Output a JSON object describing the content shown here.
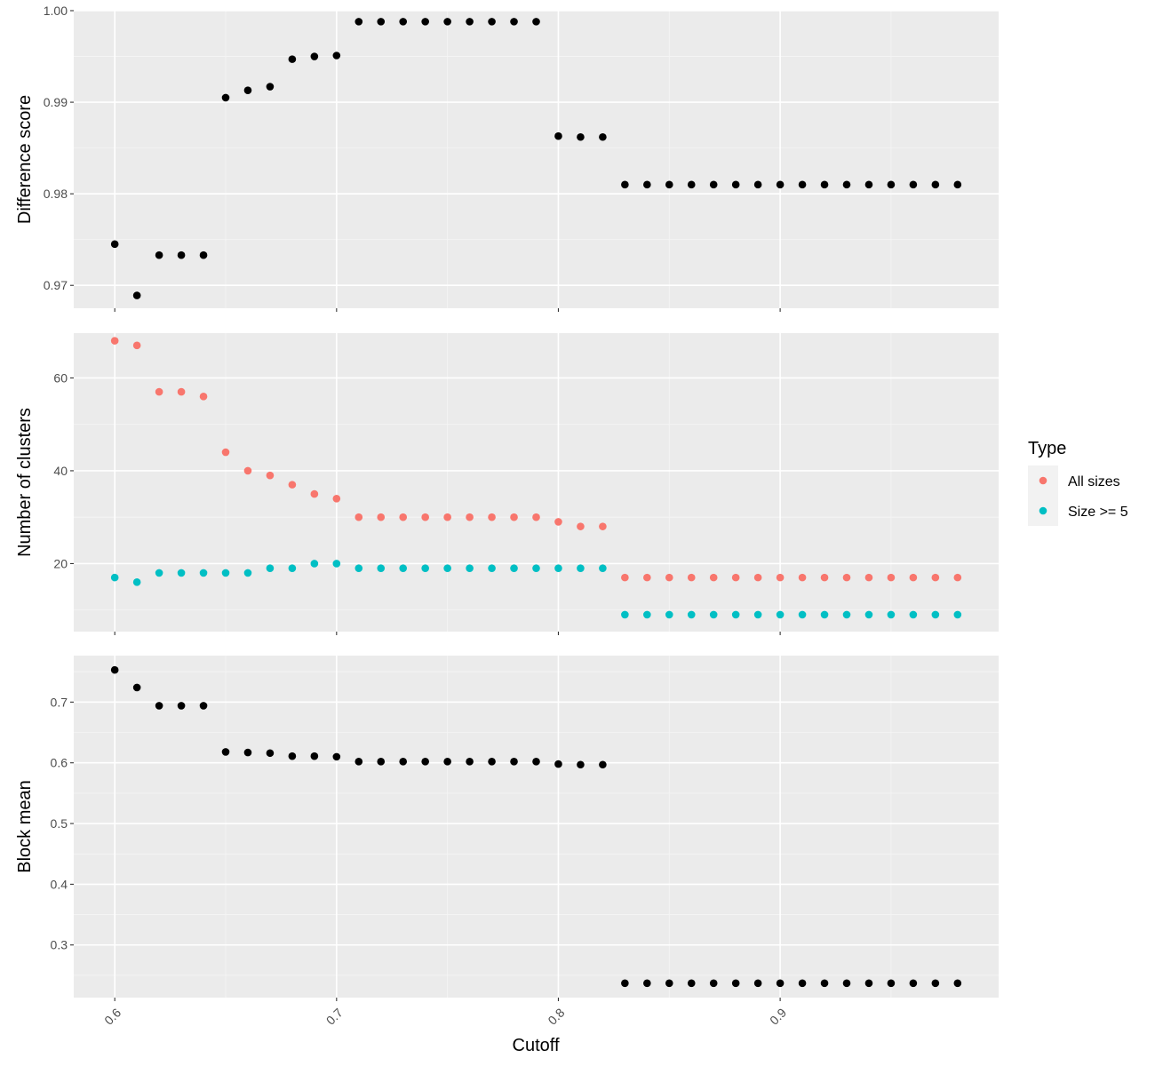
{
  "chart_data": [
    {
      "type": "scatter",
      "ylabel": "Difference score",
      "ylim": [
        0.9675,
        1.0
      ],
      "yticks": [
        0.97,
        0.98,
        0.99,
        1.0
      ],
      "ytick_labels": [
        "0.97",
        "0.98",
        "0.99",
        "1.00"
      ],
      "xlim": [
        0.5815,
        0.9985
      ],
      "xticks": [
        0.6,
        0.7,
        0.8,
        0.9
      ],
      "grid": true,
      "series": [
        {
          "color": "#000000",
          "x": [
            0.6,
            0.61,
            0.62,
            0.63,
            0.64,
            0.65,
            0.66,
            0.67,
            0.68,
            0.69,
            0.7,
            0.71,
            0.72,
            0.73,
            0.74,
            0.75,
            0.76,
            0.77,
            0.78,
            0.79,
            0.8,
            0.81,
            0.82,
            0.83,
            0.84,
            0.85,
            0.86,
            0.87,
            0.88,
            0.89,
            0.9,
            0.91,
            0.92,
            0.93,
            0.94,
            0.95,
            0.96,
            0.97,
            0.98
          ],
          "y": [
            0.9745,
            0.9689,
            0.9733,
            0.9733,
            0.9733,
            0.9905,
            0.9913,
            0.9917,
            0.9947,
            0.995,
            0.9951,
            0.9988,
            0.9988,
            0.9988,
            0.9988,
            0.9988,
            0.9988,
            0.9988,
            0.9988,
            0.9988,
            0.9863,
            0.9862,
            0.9862,
            0.981,
            0.981,
            0.981,
            0.981,
            0.981,
            0.981,
            0.981,
            0.981,
            0.981,
            0.981,
            0.981,
            0.981,
            0.981,
            0.981,
            0.981,
            0.981
          ]
        }
      ]
    },
    {
      "type": "scatter",
      "ylabel": "Number of clusters",
      "ylim": [
        5.35,
        69.65
      ],
      "yticks": [
        20,
        40,
        60
      ],
      "ytick_labels": [
        "20",
        "40",
        "60"
      ],
      "xlim": [
        0.5815,
        0.9985
      ],
      "xticks": [
        0.6,
        0.7,
        0.8,
        0.9
      ],
      "grid": true,
      "legend": {
        "title": "Type",
        "placement": "right",
        "entries": [
          "All sizes",
          "Size >= 5"
        ]
      },
      "series": [
        {
          "name": "All sizes",
          "color": "#F8766D",
          "x": [
            0.6,
            0.61,
            0.62,
            0.63,
            0.64,
            0.65,
            0.66,
            0.67,
            0.68,
            0.69,
            0.7,
            0.71,
            0.72,
            0.73,
            0.74,
            0.75,
            0.76,
            0.77,
            0.78,
            0.79,
            0.8,
            0.81,
            0.82,
            0.83,
            0.84,
            0.85,
            0.86,
            0.87,
            0.88,
            0.89,
            0.9,
            0.91,
            0.92,
            0.93,
            0.94,
            0.95,
            0.96,
            0.97,
            0.98
          ],
          "y": [
            68,
            67,
            57,
            57,
            56,
            44,
            40,
            39,
            37,
            35,
            34,
            30,
            30,
            30,
            30,
            30,
            30,
            30,
            30,
            30,
            29,
            28,
            28,
            17,
            17,
            17,
            17,
            17,
            17,
            17,
            17,
            17,
            17,
            17,
            17,
            17,
            17,
            17,
            17
          ]
        },
        {
          "name": "Size >= 5",
          "color": "#00BFC4",
          "x": [
            0.6,
            0.61,
            0.62,
            0.63,
            0.64,
            0.65,
            0.66,
            0.67,
            0.68,
            0.69,
            0.7,
            0.71,
            0.72,
            0.73,
            0.74,
            0.75,
            0.76,
            0.77,
            0.78,
            0.79,
            0.8,
            0.81,
            0.82,
            0.83,
            0.84,
            0.85,
            0.86,
            0.87,
            0.88,
            0.89,
            0.9,
            0.91,
            0.92,
            0.93,
            0.94,
            0.95,
            0.96,
            0.97,
            0.98
          ],
          "y": [
            17,
            16,
            18,
            18,
            18,
            18,
            18,
            19,
            19,
            20,
            20,
            19,
            19,
            19,
            19,
            19,
            19,
            19,
            19,
            19,
            19,
            19,
            19,
            9,
            9,
            9,
            9,
            9,
            9,
            9,
            9,
            9,
            9,
            9,
            9,
            9,
            9,
            9,
            9
          ]
        }
      ]
    },
    {
      "type": "scatter",
      "xlabel": "Cutoff",
      "ylabel": "Block mean",
      "ylim": [
        0.2133,
        0.7766
      ],
      "yticks": [
        0.3,
        0.4,
        0.5,
        0.6,
        0.7
      ],
      "ytick_labels": [
        "0.3",
        "0.4",
        "0.5",
        "0.6",
        "0.7"
      ],
      "xlim": [
        0.5815,
        0.9985
      ],
      "xticks": [
        0.6,
        0.7,
        0.8,
        0.9
      ],
      "xtick_labels": [
        "0.6",
        "0.7",
        "0.8",
        "0.9"
      ],
      "grid": true,
      "series": [
        {
          "color": "#000000",
          "x": [
            0.6,
            0.61,
            0.62,
            0.63,
            0.64,
            0.65,
            0.66,
            0.67,
            0.68,
            0.69,
            0.7,
            0.71,
            0.72,
            0.73,
            0.74,
            0.75,
            0.76,
            0.77,
            0.78,
            0.79,
            0.8,
            0.81,
            0.82,
            0.83,
            0.84,
            0.85,
            0.86,
            0.87,
            0.88,
            0.89,
            0.9,
            0.91,
            0.92,
            0.93,
            0.94,
            0.95,
            0.96,
            0.97,
            0.98
          ],
          "y": [
            0.753,
            0.724,
            0.694,
            0.694,
            0.694,
            0.618,
            0.617,
            0.616,
            0.611,
            0.611,
            0.61,
            0.602,
            0.602,
            0.602,
            0.602,
            0.602,
            0.602,
            0.602,
            0.602,
            0.602,
            0.598,
            0.597,
            0.597,
            0.237,
            0.237,
            0.237,
            0.237,
            0.237,
            0.237,
            0.237,
            0.237,
            0.237,
            0.237,
            0.237,
            0.237,
            0.237,
            0.237,
            0.237,
            0.237
          ]
        }
      ]
    }
  ]
}
